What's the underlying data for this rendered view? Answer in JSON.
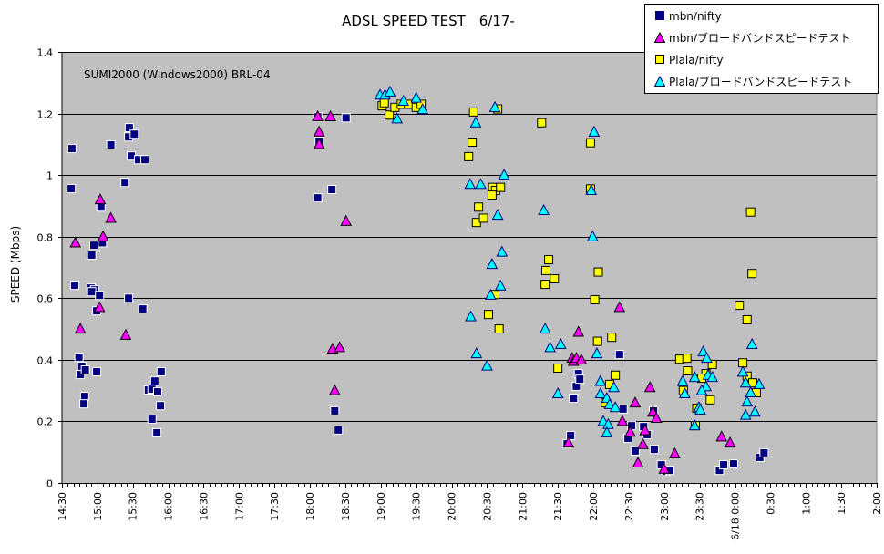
{
  "chart_data": {
    "type": "scatter",
    "title": "ADSL SPEED TEST　6/17-",
    "annotation": "SUMI2000 (Windows2000) BRL-04",
    "xlabel": "",
    "ylabel": "SPEED (Mbps)",
    "x_unit": "hours since 6/17 0:00 (values above 24 are 6/18)",
    "xlim": [
      14.5,
      26.0
    ],
    "ylim": [
      0,
      1.4
    ],
    "yticks": [
      0,
      0.2,
      0.4,
      0.6,
      0.8,
      1.0,
      1.2,
      1.4
    ],
    "ytick_labels": [
      "0",
      "0.2",
      "0.4",
      "0.6",
      "0.8",
      "1",
      "1.2",
      "1.4"
    ],
    "xtick_labels": [
      "14:30",
      "15:00",
      "15:30",
      "16:00",
      "16:30",
      "17:00",
      "17:30",
      "18:00",
      "18:30",
      "19:00",
      "19:30",
      "20:00",
      "20:30",
      "21:00",
      "21:30",
      "22:00",
      "22:30",
      "23:00",
      "23:30",
      "6/18 0:00",
      "0:30",
      "1:00",
      "1:30",
      "2:00"
    ],
    "grid": true,
    "legend_position": "top-right",
    "series": [
      {
        "name": "mbn/nifty",
        "marker": "square",
        "color": "#000080",
        "edge": "#ffffff",
        "points": [
          [
            14.64,
            1.086
          ],
          [
            14.63,
            0.956
          ],
          [
            14.68,
            0.642
          ],
          [
            14.95,
            0.772
          ],
          [
            14.92,
            0.74
          ],
          [
            15.07,
            0.78
          ],
          [
            15.05,
            0.896
          ],
          [
            15.19,
            1.098
          ],
          [
            15.39,
            0.976
          ],
          [
            15.45,
            1.154
          ],
          [
            15.44,
            1.124
          ],
          [
            15.52,
            1.133
          ],
          [
            15.48,
            1.062
          ],
          [
            15.58,
            1.05
          ],
          [
            15.67,
            1.05
          ],
          [
            15.44,
            0.6
          ],
          [
            15.64,
            0.565
          ],
          [
            14.91,
            0.633
          ],
          [
            14.96,
            0.627
          ],
          [
            14.92,
            0.621
          ],
          [
            15.03,
            0.609
          ],
          [
            14.99,
            0.559
          ],
          [
            14.74,
            0.408
          ],
          [
            14.78,
            0.379
          ],
          [
            14.76,
            0.352
          ],
          [
            14.83,
            0.367
          ],
          [
            14.82,
            0.281
          ],
          [
            14.81,
            0.257
          ],
          [
            14.99,
            0.361
          ],
          [
            15.9,
            0.361
          ],
          [
            15.72,
            0.302
          ],
          [
            15.77,
            0.305
          ],
          [
            15.81,
            0.331
          ],
          [
            15.85,
            0.296
          ],
          [
            15.89,
            0.251
          ],
          [
            15.77,
            0.207
          ],
          [
            15.84,
            0.163
          ],
          [
            18.11,
            1.189
          ],
          [
            18.13,
            1.11
          ],
          [
            18.11,
            0.926
          ],
          [
            18.31,
            0.953
          ],
          [
            18.51,
            1.186
          ],
          [
            18.35,
            0.234
          ],
          [
            18.4,
            0.172
          ],
          [
            21.68,
            0.154
          ],
          [
            21.63,
            0.127
          ],
          [
            21.72,
            0.275
          ],
          [
            21.76,
            0.314
          ],
          [
            21.79,
            0.355
          ],
          [
            21.81,
            0.337
          ],
          [
            22.37,
            0.417
          ],
          [
            22.42,
            0.24
          ],
          [
            22.49,
            0.145
          ],
          [
            22.54,
            0.186
          ],
          [
            22.59,
            0.104
          ],
          [
            22.71,
            0.183
          ],
          [
            22.76,
            0.157
          ],
          [
            22.85,
            0.234
          ],
          [
            22.86,
            0.109
          ],
          [
            22.96,
            0.059
          ],
          [
            23.03,
            0.038
          ],
          [
            23.08,
            0.041
          ],
          [
            23.78,
            0.041
          ],
          [
            23.84,
            0.059
          ],
          [
            23.98,
            0.062
          ],
          [
            24.35,
            0.083
          ],
          [
            24.41,
            0.098
          ]
        ]
      },
      {
        "name": "mbn/ブロードバンドスピードテスト",
        "marker": "triangle",
        "color": "#ff00ff",
        "edge": "#000000",
        "points": [
          [
            14.69,
            0.78
          ],
          [
            14.76,
            0.5
          ],
          [
            15.04,
            0.92
          ],
          [
            15.08,
            0.8
          ],
          [
            15.03,
            0.57
          ],
          [
            15.19,
            0.86
          ],
          [
            15.4,
            0.48
          ],
          [
            18.11,
            1.19
          ],
          [
            18.13,
            1.14
          ],
          [
            18.13,
            1.1
          ],
          [
            18.29,
            1.19
          ],
          [
            18.51,
            0.85
          ],
          [
            18.32,
            0.435
          ],
          [
            18.42,
            0.44
          ],
          [
            18.35,
            0.3
          ],
          [
            21.79,
            0.49
          ],
          [
            21.7,
            0.405
          ],
          [
            21.72,
            0.395
          ],
          [
            21.76,
            0.405
          ],
          [
            21.83,
            0.4
          ],
          [
            21.65,
            0.13
          ],
          [
            22.37,
            0.57
          ],
          [
            22.41,
            0.2
          ],
          [
            22.52,
            0.165
          ],
          [
            22.59,
            0.26
          ],
          [
            22.63,
            0.065
          ],
          [
            22.7,
            0.125
          ],
          [
            22.8,
            0.31
          ],
          [
            22.84,
            0.23
          ],
          [
            22.89,
            0.21
          ],
          [
            22.73,
            0.17
          ],
          [
            23.15,
            0.095
          ],
          [
            23.0,
            0.045
          ],
          [
            23.81,
            0.15
          ],
          [
            23.93,
            0.13
          ]
        ]
      },
      {
        "name": "Plala/nifty",
        "marker": "square",
        "color": "#ffff00",
        "edge": "#000000",
        "points": [
          [
            19.02,
            1.225
          ],
          [
            19.05,
            1.235
          ],
          [
            19.12,
            1.195
          ],
          [
            19.2,
            1.22
          ],
          [
            19.29,
            1.23
          ],
          [
            19.39,
            1.23
          ],
          [
            19.5,
            1.22
          ],
          [
            19.57,
            1.23
          ],
          [
            20.31,
            1.205
          ],
          [
            20.24,
            1.06
          ],
          [
            20.29,
            1.107
          ],
          [
            20.38,
            0.896
          ],
          [
            20.35,
            0.846
          ],
          [
            20.45,
            0.86
          ],
          [
            20.58,
            0.96
          ],
          [
            20.62,
            0.95
          ],
          [
            20.69,
            0.96
          ],
          [
            20.57,
            0.935
          ],
          [
            20.52,
            0.547
          ],
          [
            20.61,
            0.612
          ],
          [
            20.67,
            0.5
          ],
          [
            20.65,
            1.215
          ],
          [
            21.27,
            1.17
          ],
          [
            21.33,
            0.69
          ],
          [
            21.37,
            0.725
          ],
          [
            21.45,
            0.663
          ],
          [
            21.32,
            0.645
          ],
          [
            21.5,
            0.373
          ],
          [
            21.96,
            1.105
          ],
          [
            21.96,
            0.955
          ],
          [
            22.02,
            0.595
          ],
          [
            22.07,
            0.685
          ],
          [
            22.06,
            0.46
          ],
          [
            22.26,
            0.473
          ],
          [
            22.31,
            0.35
          ],
          [
            22.23,
            0.32
          ],
          [
            22.17,
            0.26
          ],
          [
            23.22,
            0.402
          ],
          [
            23.32,
            0.405
          ],
          [
            23.33,
            0.364
          ],
          [
            23.27,
            0.3
          ],
          [
            23.46,
            0.243
          ],
          [
            23.68,
            0.385
          ],
          [
            23.59,
            0.355
          ],
          [
            23.53,
            0.34
          ],
          [
            23.65,
            0.27
          ],
          [
            23.44,
            0.186
          ],
          [
            24.06,
            0.577
          ],
          [
            24.17,
            0.53
          ],
          [
            24.22,
            0.88
          ],
          [
            24.24,
            0.68
          ],
          [
            24.11,
            0.39
          ],
          [
            24.17,
            0.347
          ],
          [
            24.25,
            0.325
          ],
          [
            24.3,
            0.293
          ]
        ]
      },
      {
        "name": "Plala/ブロードバンドスピードテスト",
        "marker": "triangle",
        "color": "#00ffff",
        "edge": "#000080",
        "points": [
          [
            18.99,
            1.26
          ],
          [
            19.06,
            1.26
          ],
          [
            19.13,
            1.27
          ],
          [
            19.23,
            1.183
          ],
          [
            19.32,
            1.24
          ],
          [
            19.5,
            1.25
          ],
          [
            19.59,
            1.213
          ],
          [
            20.26,
            0.97
          ],
          [
            20.41,
            0.97
          ],
          [
            20.34,
            1.17
          ],
          [
            20.27,
            0.54
          ],
          [
            20.35,
            0.42
          ],
          [
            20.5,
            0.38
          ],
          [
            20.55,
            0.61
          ],
          [
            20.57,
            0.71
          ],
          [
            20.69,
            0.64
          ],
          [
            20.71,
            0.75
          ],
          [
            20.65,
            0.87
          ],
          [
            20.61,
            1.22
          ],
          [
            20.74,
            1.0
          ],
          [
            21.3,
            0.885
          ],
          [
            21.32,
            0.5
          ],
          [
            21.39,
            0.44
          ],
          [
            21.54,
            0.45
          ],
          [
            21.5,
            0.29
          ],
          [
            21.97,
            0.95
          ],
          [
            22.01,
            1.14
          ],
          [
            21.99,
            0.8
          ],
          [
            22.05,
            0.42
          ],
          [
            22.1,
            0.33
          ],
          [
            22.14,
            0.2
          ],
          [
            22.21,
            0.19
          ],
          [
            22.19,
            0.163
          ],
          [
            22.1,
            0.29
          ],
          [
            22.19,
            0.275
          ],
          [
            22.29,
            0.31
          ],
          [
            22.23,
            0.255
          ],
          [
            22.31,
            0.245
          ],
          [
            23.26,
            0.33
          ],
          [
            23.29,
            0.29
          ],
          [
            23.43,
            0.343
          ],
          [
            23.49,
            0.245
          ],
          [
            23.62,
            0.35
          ],
          [
            23.59,
            0.313
          ],
          [
            23.68,
            0.343
          ],
          [
            23.55,
            0.426
          ],
          [
            23.6,
            0.405
          ],
          [
            23.53,
            0.3
          ],
          [
            23.43,
            0.186
          ],
          [
            23.51,
            0.237
          ],
          [
            24.24,
            0.45
          ],
          [
            24.11,
            0.36
          ],
          [
            24.15,
            0.325
          ],
          [
            24.22,
            0.293
          ],
          [
            24.34,
            0.32
          ],
          [
            24.28,
            0.23
          ],
          [
            24.15,
            0.22
          ],
          [
            24.17,
            0.263
          ]
        ]
      }
    ]
  }
}
